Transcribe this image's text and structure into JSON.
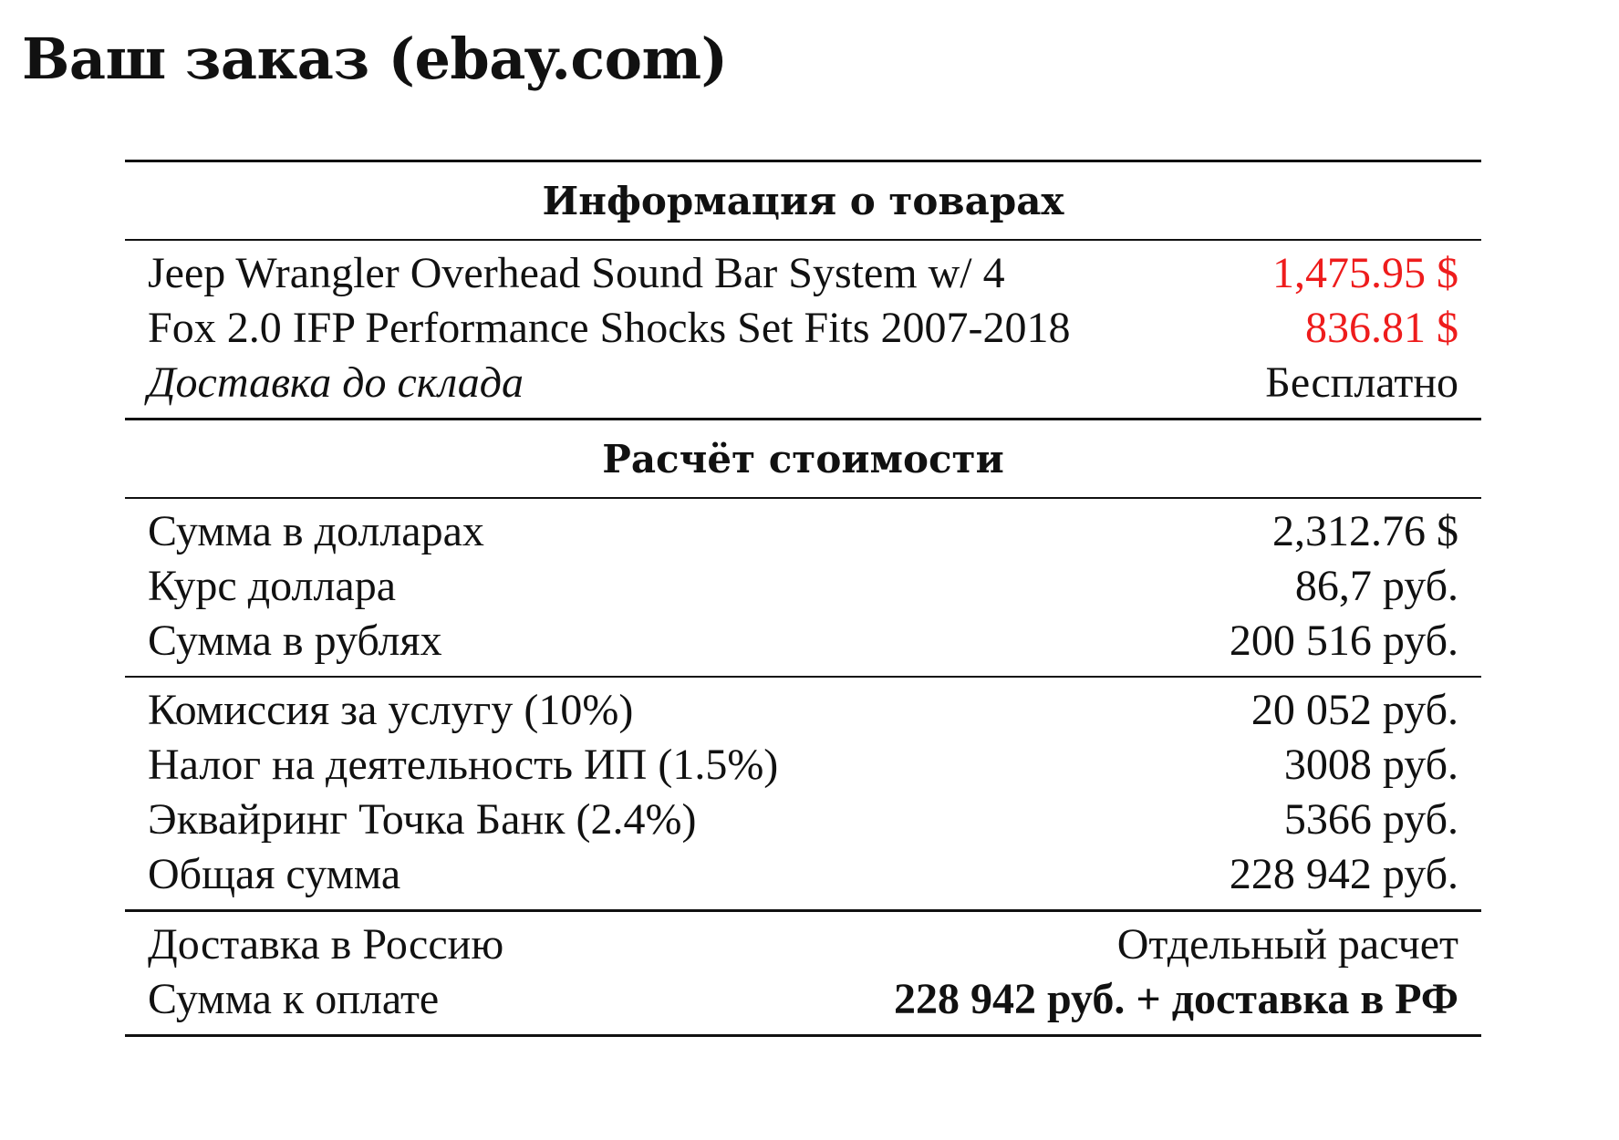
{
  "title": "Ваш заказ (ebay.com)",
  "colors": {
    "price_highlight": "#ee1c1c",
    "text": "#111111",
    "background": "#ffffff"
  },
  "products": {
    "header": "Информация о товарах",
    "items": [
      {
        "label": "Jeep Wrangler Overhead Sound Bar System w/ 4",
        "value": "1,475.95 $"
      },
      {
        "label": "Fox 2.0 IFP Performance Shocks Set Fits 2007-2018",
        "value": "836.81 $"
      }
    ],
    "warehouse_shipping": {
      "label": "Доставка до склада",
      "value": "Бесплатно"
    }
  },
  "calculation": {
    "header": "Расчёт стоимости",
    "conversion": [
      {
        "label": "Сумма в долларах",
        "value": "2,312.76 $"
      },
      {
        "label": "Курс доллара",
        "value": "86,7 руб."
      },
      {
        "label": "Сумма в рублях",
        "value": "200 516 руб."
      }
    ],
    "fees": [
      {
        "label": "Комиссия за услугу (10%)",
        "value": "20 052 руб."
      },
      {
        "label": "Налог на деятельность ИП (1.5%)",
        "value": "3008 руб."
      },
      {
        "label": "Эквайринг Точка Банк (2.4%)",
        "value": "5366 руб."
      },
      {
        "label": "Общая сумма",
        "value": "228 942 руб."
      }
    ],
    "final": [
      {
        "label": "Доставка в Россию",
        "value": "Отдельный расчет"
      },
      {
        "label": "Сумма к оплате",
        "value": "228 942 руб. + доставка в РФ"
      }
    ]
  }
}
